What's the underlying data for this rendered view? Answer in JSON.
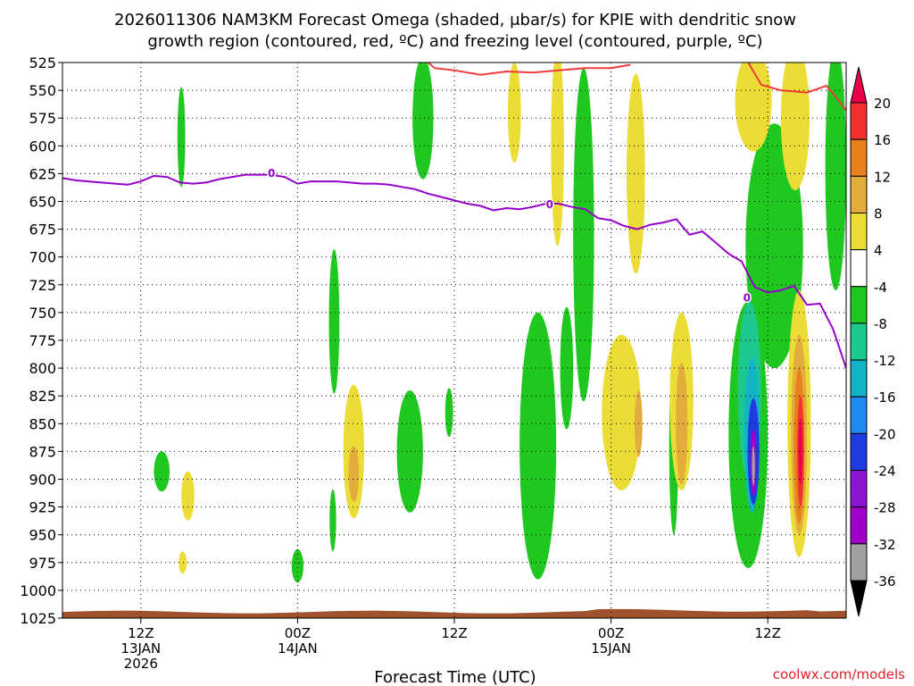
{
  "chart_data": {
    "type": "heatmap",
    "title_line1": "2026011306 NAM3KM Forecast Omega (shaded, μbar/s) for KPIE with dendritic snow",
    "title_line2": "growth region (contoured, red, ºC) and freezing level (contoured, purple, ºC)",
    "xlabel": "Forecast Time (UTC)",
    "credit": "coolwx.com/models",
    "xlim_hours": [
      0,
      60
    ],
    "ylim_hPa": [
      525,
      1025
    ],
    "y_ticks": [
      525,
      550,
      575,
      600,
      625,
      650,
      675,
      700,
      725,
      750,
      775,
      800,
      825,
      850,
      875,
      900,
      925,
      950,
      975,
      1000,
      1025
    ],
    "x_ticks": [
      {
        "hour": 6,
        "lines": [
          "12Z",
          "13JAN",
          "2026"
        ]
      },
      {
        "hour": 18,
        "lines": [
          "00Z",
          "14JAN"
        ]
      },
      {
        "hour": 30,
        "lines": [
          "12Z"
        ]
      },
      {
        "hour": 42,
        "lines": [
          "00Z",
          "15JAN"
        ]
      },
      {
        "hour": 54,
        "lines": [
          "12Z"
        ]
      }
    ],
    "colorbar": {
      "levels": [
        20,
        16,
        12,
        8,
        4,
        -4,
        -8,
        -12,
        -16,
        -20,
        -24,
        -28,
        -32,
        -36
      ],
      "colors": [
        "#e8004a",
        "#f43030",
        "#e8801e",
        "#e4ac3c",
        "#ecdc36",
        "#ffffff",
        "#1ec81e",
        "#1ec88c",
        "#14b4c8",
        "#1e8cf0",
        "#1e3ce0",
        "#8c14d2",
        "#a000c8",
        "#a0a0a0"
      ]
    },
    "freezing_level_label": "0",
    "freezing_level": [
      [
        0,
        629
      ],
      [
        1,
        631
      ],
      [
        2,
        632
      ],
      [
        3,
        633
      ],
      [
        4,
        634
      ],
      [
        5,
        635
      ],
      [
        6,
        632
      ],
      [
        7,
        627
      ],
      [
        8,
        628
      ],
      [
        9,
        633
      ],
      [
        10,
        634
      ],
      [
        11,
        633
      ],
      [
        12,
        630
      ],
      [
        13,
        628
      ],
      [
        14,
        626
      ],
      [
        15,
        626
      ],
      [
        16,
        626
      ],
      [
        17,
        628
      ],
      [
        18,
        634
      ],
      [
        19,
        632
      ],
      [
        20,
        632
      ],
      [
        21,
        632
      ],
      [
        22,
        633
      ],
      [
        23,
        634
      ],
      [
        24,
        634
      ],
      [
        25,
        635
      ],
      [
        26,
        637
      ],
      [
        27,
        639
      ],
      [
        28,
        643
      ],
      [
        29,
        646
      ],
      [
        30,
        649
      ],
      [
        31,
        652
      ],
      [
        32,
        654
      ],
      [
        33,
        658
      ],
      [
        34,
        656
      ],
      [
        35,
        657
      ],
      [
        36,
        655
      ],
      [
        37,
        652
      ],
      [
        38,
        652
      ],
      [
        39,
        655
      ],
      [
        40,
        657
      ],
      [
        41,
        665
      ],
      [
        42,
        667
      ],
      [
        43,
        672
      ],
      [
        44,
        675
      ],
      [
        45,
        671
      ],
      [
        46,
        669
      ],
      [
        47,
        666
      ],
      [
        48,
        680
      ],
      [
        49,
        677
      ],
      [
        50,
        687
      ],
      [
        51,
        697
      ],
      [
        52,
        704
      ],
      [
        53,
        727
      ],
      [
        54,
        732
      ],
      [
        55,
        730
      ],
      [
        56,
        726
      ],
      [
        57,
        743
      ],
      [
        58,
        742
      ],
      [
        59,
        765
      ],
      [
        60,
        800
      ]
    ],
    "dgz_top": [
      [
        28.0,
        525
      ],
      [
        28.5,
        530
      ],
      [
        30,
        532
      ],
      [
        32,
        536
      ],
      [
        34,
        533
      ],
      [
        36,
        534
      ],
      [
        38,
        532
      ],
      [
        40,
        530
      ],
      [
        42,
        530
      ],
      [
        43.5,
        527
      ]
    ],
    "dgz_right": [
      [
        52.5,
        525
      ],
      [
        53.5,
        545
      ],
      [
        55,
        550
      ],
      [
        57,
        552
      ],
      [
        58,
        548
      ],
      [
        58.5,
        546
      ],
      [
        59,
        553
      ],
      [
        60,
        568
      ]
    ],
    "omega_regions": [
      {
        "value": -8,
        "center": [
          27.6,
          575
        ],
        "rx": 0.8,
        "ry": 55
      },
      {
        "value": -8,
        "center": [
          9.1,
          592
        ],
        "rx": 0.3,
        "ry": 45
      },
      {
        "value": -8,
        "center": [
          7.6,
          893
        ],
        "rx": 0.6,
        "ry": 18
      },
      {
        "value": -8,
        "center": [
          20.8,
          758
        ],
        "rx": 0.4,
        "ry": 65
      },
      {
        "value": -8,
        "center": [
          20.7,
          937
        ],
        "rx": 0.25,
        "ry": 28
      },
      {
        "value": -8,
        "center": [
          18.0,
          978
        ],
        "rx": 0.45,
        "ry": 15
      },
      {
        "value": -8,
        "center": [
          26.6,
          875
        ],
        "rx": 1.0,
        "ry": 55
      },
      {
        "value": -8,
        "center": [
          29.6,
          840
        ],
        "rx": 0.3,
        "ry": 22
      },
      {
        "value": -8,
        "center": [
          36.4,
          870
        ],
        "rx": 1.4,
        "ry": 120
      },
      {
        "value": -8,
        "center": [
          39.9,
          680
        ],
        "rx": 0.8,
        "ry": 150
      },
      {
        "value": -8,
        "center": [
          38.6,
          800
        ],
        "rx": 0.5,
        "ry": 55
      },
      {
        "value": -8,
        "center": [
          43.5,
          625
        ],
        "rx": 0.3,
        "ry": 55
      },
      {
        "value": -8,
        "center": [
          46.8,
          870
        ],
        "rx": 0.35,
        "ry": 80
      },
      {
        "value": -8,
        "center": [
          54.5,
          690
        ],
        "rx": 2.2,
        "ry": 110
      },
      {
        "value": -8,
        "center": [
          59.2,
          620
        ],
        "rx": 0.8,
        "ry": 110
      },
      {
        "value": -8,
        "center": [
          52.5,
          860
        ],
        "rx": 1.5,
        "ry": 120
      },
      {
        "value": -12,
        "center": [
          52.6,
          820
        ],
        "rx": 0.9,
        "ry": 80
      },
      {
        "value": -16,
        "center": [
          52.8,
          860
        ],
        "rx": 0.6,
        "ry": 70
      },
      {
        "value": -24,
        "center": [
          52.9,
          875
        ],
        "rx": 0.45,
        "ry": 48
      },
      {
        "value": -32,
        "center": [
          52.9,
          885
        ],
        "rx": 0.22,
        "ry": 30
      },
      {
        "value": -36,
        "center": [
          52.9,
          888
        ],
        "rx": 0.12,
        "ry": 18
      },
      {
        "value": 4,
        "center": [
          9.6,
          915
        ],
        "rx": 0.5,
        "ry": 22
      },
      {
        "value": 4,
        "center": [
          9.2,
          975
        ],
        "rx": 0.3,
        "ry": 10
      },
      {
        "value": 4,
        "center": [
          22.3,
          875
        ],
        "rx": 0.8,
        "ry": 60
      },
      {
        "value": 4,
        "center": [
          34.6,
          570
        ],
        "rx": 0.5,
        "ry": 45
      },
      {
        "value": 4,
        "center": [
          37.9,
          600
        ],
        "rx": 0.5,
        "ry": 90
      },
      {
        "value": 4,
        "center": [
          43.9,
          625
        ],
        "rx": 0.7,
        "ry": 90
      },
      {
        "value": 4,
        "center": [
          42.8,
          840
        ],
        "rx": 1.5,
        "ry": 70
      },
      {
        "value": 4,
        "center": [
          47.4,
          830
        ],
        "rx": 0.9,
        "ry": 80
      },
      {
        "value": 4,
        "center": [
          52.9,
          560
        ],
        "rx": 1.4,
        "ry": 45
      },
      {
        "value": 4,
        "center": [
          56.1,
          575
        ],
        "rx": 1.1,
        "ry": 65
      },
      {
        "value": 4,
        "center": [
          56.4,
          850
        ],
        "rx": 0.9,
        "ry": 120
      },
      {
        "value": 8,
        "center": [
          22.3,
          895
        ],
        "rx": 0.4,
        "ry": 25
      },
      {
        "value": 8,
        "center": [
          47.4,
          850
        ],
        "rx": 0.45,
        "ry": 55
      },
      {
        "value": 8,
        "center": [
          44.1,
          850
        ],
        "rx": 0.3,
        "ry": 30
      },
      {
        "value": 8,
        "center": [
          56.4,
          860
        ],
        "rx": 0.6,
        "ry": 90
      },
      {
        "value": 12,
        "center": [
          56.4,
          870
        ],
        "rx": 0.4,
        "ry": 70
      },
      {
        "value": 16,
        "center": [
          56.5,
          875
        ],
        "rx": 0.25,
        "ry": 50
      },
      {
        "value": 20,
        "center": [
          56.5,
          875
        ],
        "rx": 0.14,
        "ry": 30
      }
    ],
    "terrain_color": "#a0522d"
  }
}
